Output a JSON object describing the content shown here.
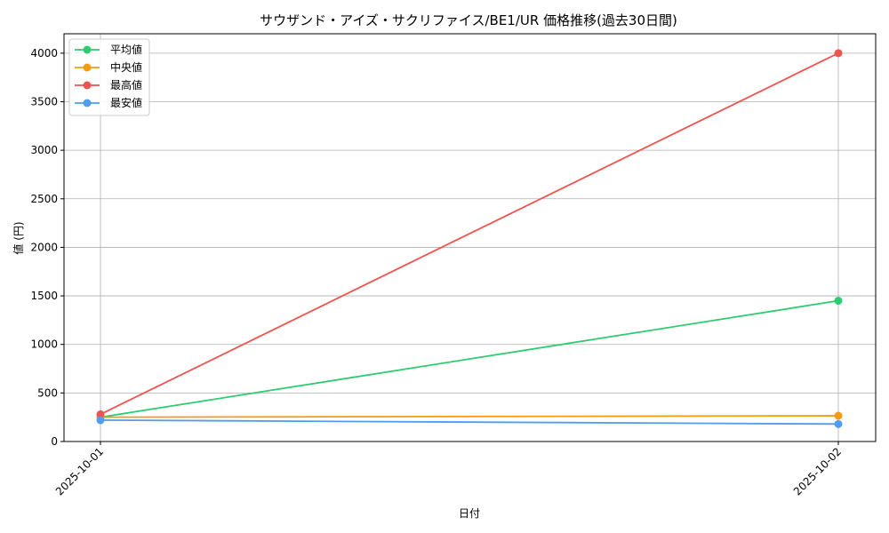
{
  "chart_data": {
    "type": "line",
    "title": "サウザンド・アイズ・サクリファイス/BE1/UR 価格推移(過去30日間)",
    "xlabel": "日付",
    "ylabel": "値 (円)",
    "categories": [
      "2025-10-01",
      "2025-10-02"
    ],
    "ylim": [
      0,
      4200
    ],
    "yticks": [
      0,
      500,
      1000,
      1500,
      2000,
      2500,
      3000,
      3500,
      4000
    ],
    "grid": true,
    "legend_position": "top-left",
    "series": [
      {
        "name": "平均値",
        "color": "#2ecc71",
        "values": [
          250,
          1450
        ]
      },
      {
        "name": "中央値",
        "color": "#f39c12",
        "values": [
          250,
          265
        ]
      },
      {
        "name": "最高値",
        "color": "#ef5350",
        "values": [
          280,
          4000
        ]
      },
      {
        "name": "最安値",
        "color": "#4f9df0",
        "values": [
          220,
          180
        ]
      }
    ]
  }
}
